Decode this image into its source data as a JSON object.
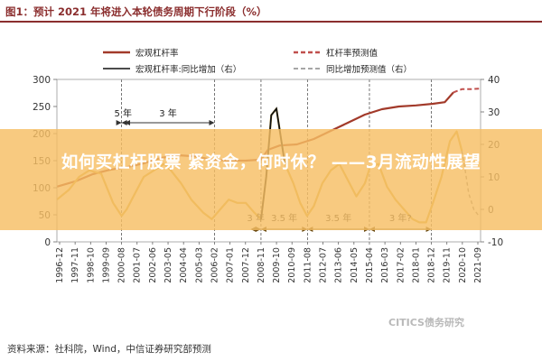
{
  "header": {
    "figure_title": "图1：预计 2021 年将进入本轮债务周期下行阶段（%）"
  },
  "footer": {
    "source": "资料来源：社科院，Wind，中信证券研究部预测"
  },
  "watermark": "CITICS债务研究",
  "overlay": {
    "text": "如何买杠杆股票 紧资金，何时休？ ——3月流动性展望"
  },
  "chart_data": {
    "type": "line",
    "left_axis": {
      "ticks": [
        0,
        50,
        100,
        150,
        200,
        250,
        300
      ],
      "ylim": [
        0,
        300
      ]
    },
    "right_axis": {
      "ticks": [
        -10,
        0,
        10,
        20,
        30,
        40
      ],
      "ylim": [
        -10,
        40
      ]
    },
    "x_ticks": [
      "1996-12",
      "1997-11",
      "1998-10",
      "1999-09",
      "2000-08",
      "2001-07",
      "2002-06",
      "2003-05",
      "2004-04",
      "2005-03",
      "2006-02",
      "2007-01",
      "2007-12",
      "2008-11",
      "2009-10",
      "2010-09",
      "2011-08",
      "2012-07",
      "2013-06",
      "2014-05",
      "2015-04",
      "2016-03",
      "2017-02",
      "2018-01",
      "2018-12",
      "2019-11",
      "2020-10",
      "2021-09"
    ],
    "legend": [
      {
        "label": "宏观杠杆率",
        "style": "solid",
        "color": "#a23a2a"
      },
      {
        "label": "杠杆率预测值",
        "style": "dashed",
        "color": "#c0504d"
      },
      {
        "label": "宏观杠杆率:同比增加（右）",
        "style": "solid",
        "color": "#111111"
      },
      {
        "label": "同比增加预测值（右）",
        "style": "dashed",
        "color": "#888888"
      }
    ],
    "periods": [
      "5 年",
      "3 年",
      "3 年",
      "3.5 年",
      "3.5 年",
      "3 年?"
    ],
    "series": [
      {
        "name": "宏观杠杆率",
        "axis": "left",
        "x": [
          1996.9,
          1998.0,
          1999.0,
          2000.0,
          2001.0,
          2002.0,
          2003.0,
          2004.0,
          2005.0,
          2006.0,
          2007.0,
          2008.0,
          2008.9,
          2009.3,
          2010.0,
          2011.0,
          2012.0,
          2013.0,
          2014.0,
          2015.0,
          2016.0,
          2017.0,
          2018.0,
          2019.0,
          2019.7,
          2020.2
        ],
        "y": [
          102,
          112,
          125,
          133,
          138,
          145,
          155,
          160,
          158,
          152,
          150,
          150,
          152,
          170,
          178,
          180,
          190,
          205,
          220,
          235,
          245,
          250,
          252,
          255,
          258,
          276
        ]
      },
      {
        "name": "杠杆率预测值",
        "axis": "left",
        "x": [
          2020.2,
          2020.7,
          2021.2,
          2021.8
        ],
        "y": [
          276,
          282,
          282,
          283
        ]
      },
      {
        "name": "宏观杠杆率:同比增加（右）",
        "axis": "right",
        "x": [
          1996.9,
          1997.6,
          1998.2,
          1998.8,
          1999.5,
          2000.2,
          2000.7,
          2001.0,
          2001.5,
          2002.0,
          2002.6,
          2003.2,
          2003.6,
          2004.2,
          2004.8,
          2005.5,
          2006.0,
          2006.5,
          2007.0,
          2007.5,
          2008.0,
          2008.5,
          2008.9,
          2009.2,
          2009.5,
          2009.8,
          2010.3,
          2010.8,
          2011.2,
          2011.6,
          2012.0,
          2012.5,
          2013.0,
          2013.5,
          2014.0,
          2014.5,
          2015.0,
          2015.3,
          2015.8,
          2016.3,
          2016.8,
          2017.3,
          2017.8,
          2018.2,
          2018.6,
          2019.0,
          2019.5,
          2020.0,
          2020.4,
          2020.7
        ],
        "y": [
          3,
          6,
          10,
          12,
          11,
          2,
          -2,
          0,
          5,
          10,
          12,
          14,
          12,
          8,
          3,
          -1,
          -3,
          0,
          3,
          2,
          2,
          -1,
          -3,
          10,
          29,
          31,
          14,
          8,
          2,
          -2,
          1,
          8,
          12,
          14,
          9,
          4,
          8,
          13,
          14,
          7,
          3,
          0,
          -3,
          -4,
          -4,
          2,
          10,
          21,
          24,
          18
        ]
      },
      {
        "name": "同比增加预测值（右）",
        "axis": "right",
        "x": [
          2020.7,
          2020.9,
          2021.1,
          2021.4,
          2021.7
        ],
        "y": [
          18,
          12,
          5,
          0,
          -2
        ]
      }
    ]
  }
}
